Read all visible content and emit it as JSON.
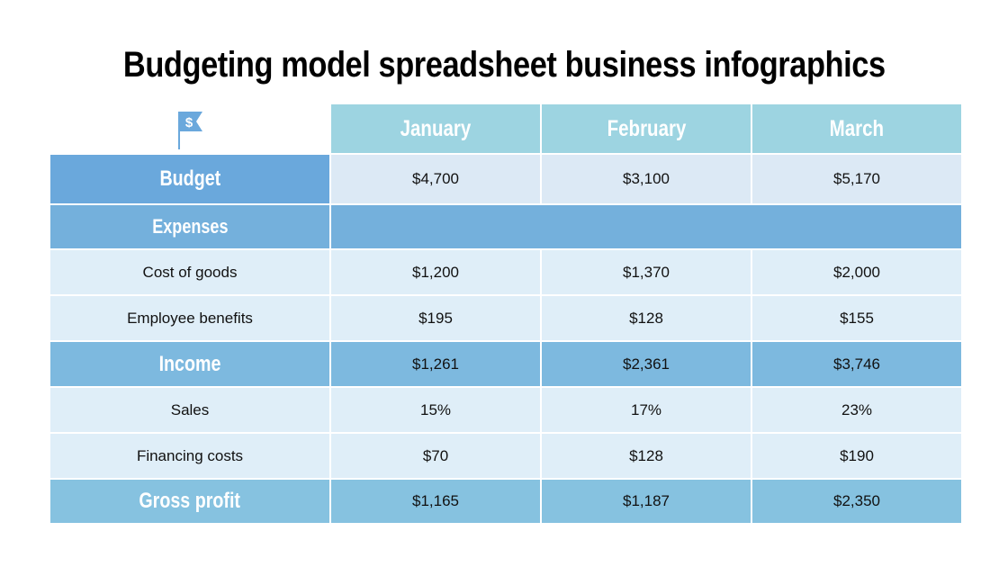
{
  "title": "Budgeting model spreadsheet business infographics",
  "icon": "dollar-flag-icon",
  "colors": {
    "header": "#9dd4e1",
    "budget_label": "#6aa8dc",
    "section": "#74b0dc",
    "light_row": "#dfeef8"
  },
  "columns": [
    "January",
    "February",
    "March"
  ],
  "rows": [
    {
      "label": "Budget",
      "values": [
        "$4,700",
        "$3,100",
        "$5,170"
      ]
    },
    {
      "label": "Expenses",
      "values": []
    },
    {
      "label": "Cost of goods",
      "values": [
        "$1,200",
        "$1,370",
        "$2,000"
      ]
    },
    {
      "label": "Employee benefits",
      "values": [
        "$195",
        "$128",
        "$155"
      ]
    },
    {
      "label": "Income",
      "values": [
        "$1,261",
        "$2,361",
        "$3,746"
      ]
    },
    {
      "label": "Sales",
      "values": [
        "15%",
        "17%",
        "23%"
      ]
    },
    {
      "label": "Financing costs",
      "values": [
        "$70",
        "$128",
        "$190"
      ]
    },
    {
      "label": "Gross profit",
      "values": [
        "$1,165",
        "$1,187",
        "$2,350"
      ]
    }
  ]
}
